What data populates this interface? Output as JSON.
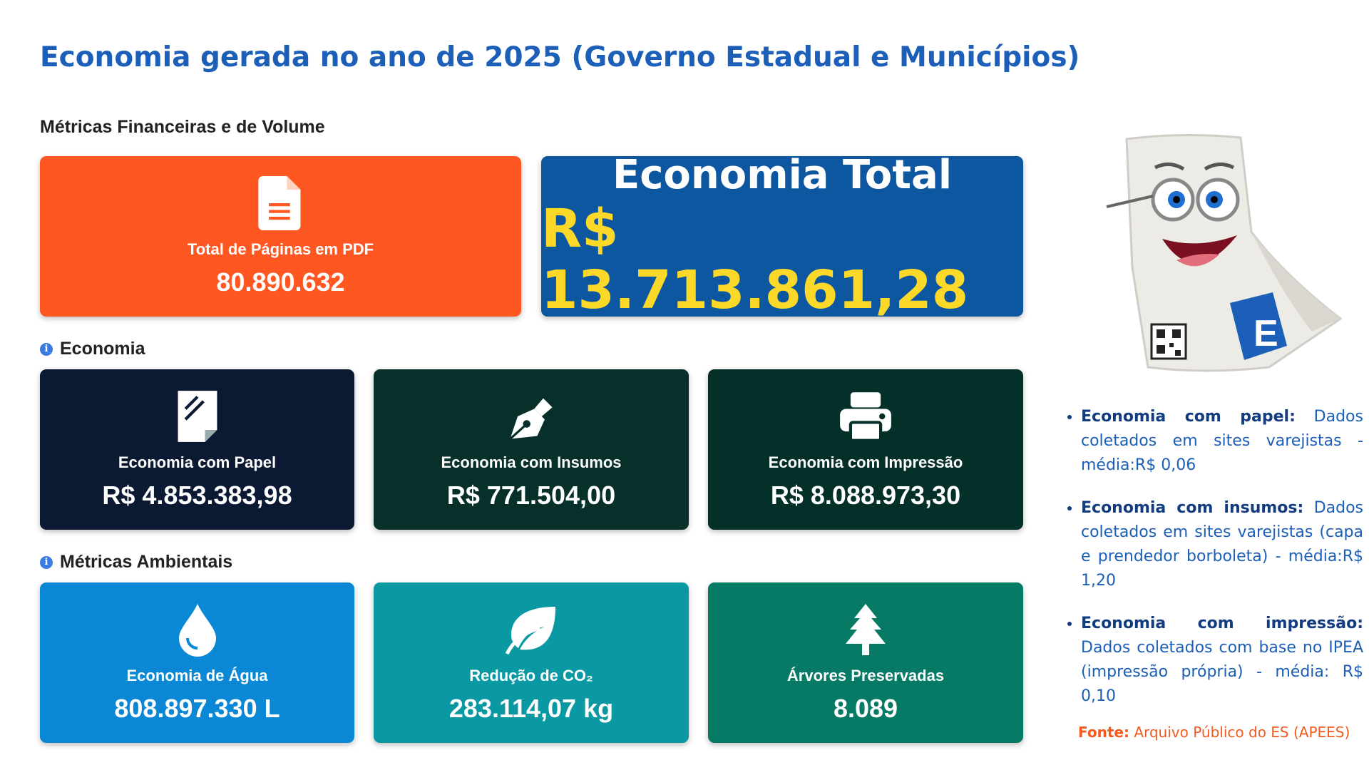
{
  "header": {
    "title": "Economia gerada no ano de 2025 (Governo Estadual e Municípios)"
  },
  "financial": {
    "heading": "Métricas Financeiras e de Volume",
    "cards": [
      {
        "label": "Total de Páginas em PDF",
        "value": "80.890.632"
      },
      {
        "label": "Economia Total",
        "value": "R$ 13.713.861,28"
      }
    ]
  },
  "economia": {
    "heading": "Economia",
    "cards": [
      {
        "label": "Economia com Papel",
        "value": "R$ 4.853.383,98"
      },
      {
        "label": "Economia com Insumos",
        "value": "R$ 771.504,00"
      },
      {
        "label": "Economia com Impressão",
        "value": "R$ 8.088.973,30"
      }
    ]
  },
  "ambiental": {
    "heading": "Métricas Ambientais",
    "cards": [
      {
        "label": "Economia de Água",
        "value": "808.897.330 L"
      },
      {
        "label": "Redução de CO₂",
        "value": "283.114,07 kg"
      },
      {
        "label": "Árvores Preservadas",
        "value": "8.089"
      }
    ]
  },
  "notes": [
    {
      "term": "Economia com papel:",
      "text": "Dados coletados em sites varejistas - média:R$ 0,06"
    },
    {
      "term": "Economia com insumos:",
      "text": "Dados coletados em sites varejistas (capa e prendedor borboleta) - média:R$ 1,20"
    },
    {
      "term": "Economia com impressão:",
      "text": "Dados coletados com base no IPEA (impressão própria) - média: R$ 0,10"
    }
  ],
  "source": {
    "label": "Fonte:",
    "text": "Arquivo Público do ES (APEES)"
  }
}
